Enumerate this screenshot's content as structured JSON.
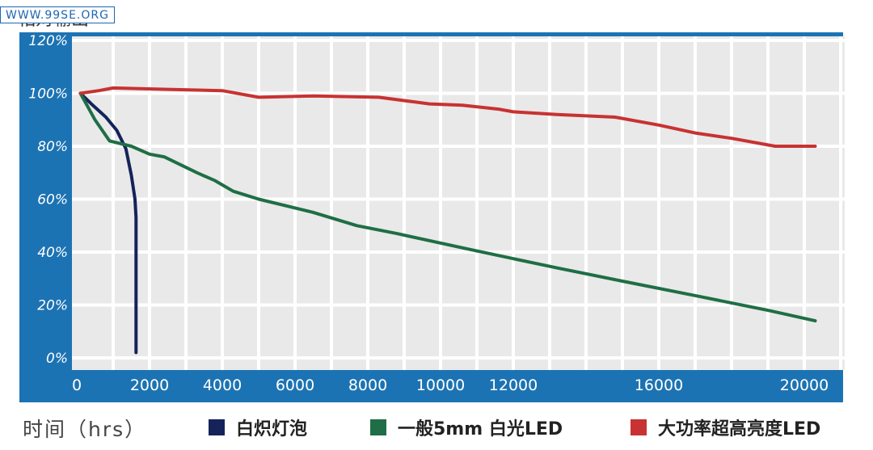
{
  "watermark": "WWW.99SE.ORG",
  "ylabel": "相对输出",
  "xlabel": "时间（hrs）",
  "chart_data": {
    "type": "line",
    "xlim": [
      0,
      21000
    ],
    "ylim": [
      0,
      120
    ],
    "xticks": [
      0,
      2000,
      4000,
      6000,
      8000,
      10000,
      12000,
      16000,
      20000
    ],
    "xtick_labels": [
      "0",
      "2000",
      "4000",
      "6000",
      "8000",
      "10000",
      "12000",
      "16000",
      "20000"
    ],
    "yticks": [
      0,
      20,
      40,
      60,
      80,
      100,
      120
    ],
    "ytick_labels": [
      "0%",
      "20%",
      "40%",
      "60%",
      "80%",
      "100%",
      "120%"
    ],
    "grid": true,
    "legend_position": "bottom",
    "series": [
      {
        "name": "白炽灯泡",
        "color": "#14245a",
        "points": [
          [
            100,
            100
          ],
          [
            400,
            96
          ],
          [
            800,
            91
          ],
          [
            1100,
            86
          ],
          [
            1350,
            79
          ],
          [
            1500,
            69
          ],
          [
            1600,
            60
          ],
          [
            1630,
            53
          ],
          [
            1630,
            40
          ],
          [
            1630,
            20
          ],
          [
            1630,
            2
          ]
        ]
      },
      {
        "name": "一般5mm 白光LED",
        "color": "#1f6e45",
        "points": [
          [
            100,
            100
          ],
          [
            500,
            90
          ],
          [
            900,
            82
          ],
          [
            1500,
            80
          ],
          [
            2000,
            77
          ],
          [
            2400,
            76
          ],
          [
            3300,
            70
          ],
          [
            3800,
            67
          ],
          [
            4300,
            63
          ],
          [
            5000,
            60
          ],
          [
            6500,
            55
          ],
          [
            7700,
            50
          ],
          [
            8800,
            47
          ],
          [
            10800,
            41
          ],
          [
            13200,
            34
          ],
          [
            15000,
            29
          ],
          [
            17200,
            23
          ],
          [
            19000,
            18
          ],
          [
            20300,
            14
          ]
        ]
      },
      {
        "name": "大功率超高亮度LED",
        "color": "#c83232",
        "points": [
          [
            100,
            100
          ],
          [
            600,
            101
          ],
          [
            1000,
            102
          ],
          [
            2500,
            101.5
          ],
          [
            4000,
            101
          ],
          [
            5000,
            98.5
          ],
          [
            6500,
            99
          ],
          [
            8300,
            98.5
          ],
          [
            9700,
            96
          ],
          [
            10600,
            95.5
          ],
          [
            11600,
            94
          ],
          [
            12000,
            93
          ],
          [
            13200,
            92
          ],
          [
            14800,
            91
          ],
          [
            16000,
            88
          ],
          [
            17000,
            85
          ],
          [
            18000,
            83
          ],
          [
            19200,
            80
          ],
          [
            20300,
            80
          ]
        ]
      }
    ]
  }
}
